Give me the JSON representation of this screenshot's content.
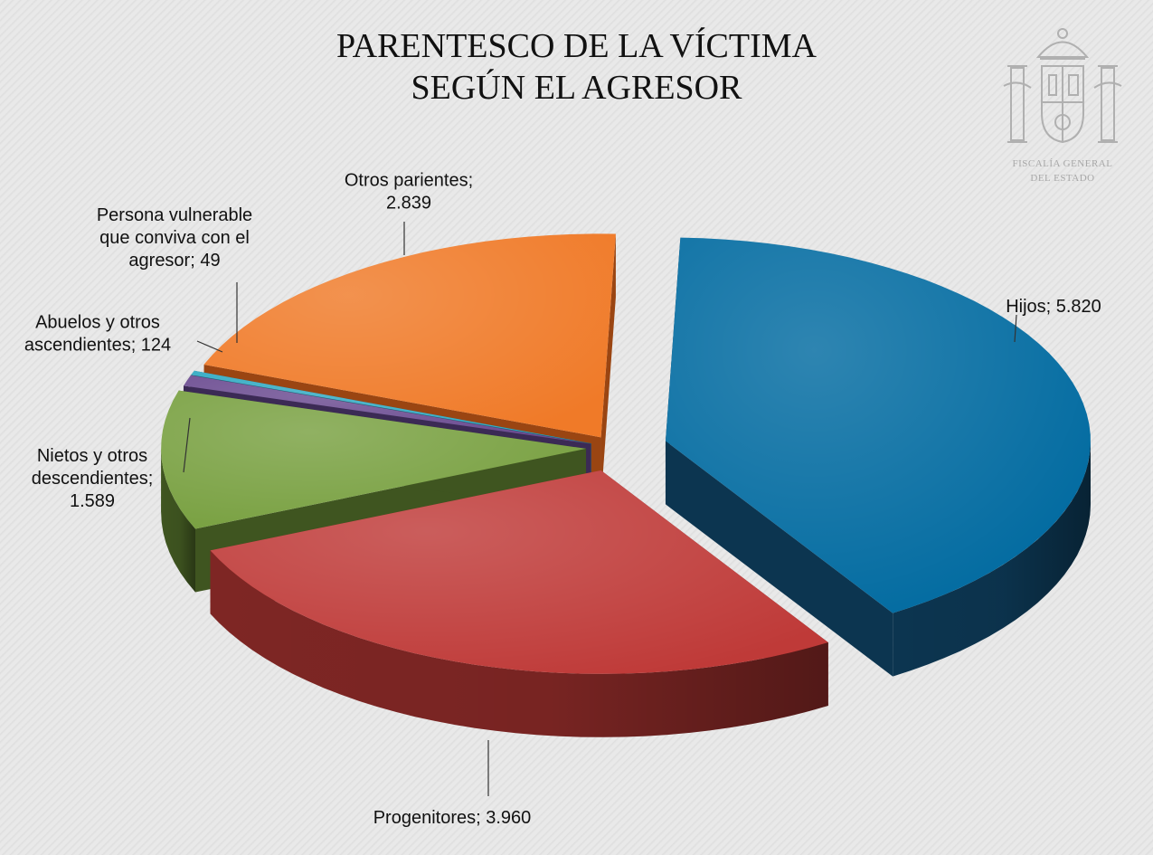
{
  "title": {
    "line1": "PARENTESCO DE LA VÍCTIMA",
    "line2": "SEGÚN EL AGRESOR"
  },
  "logo": {
    "line1": "FISCALÍA GENERAL",
    "line2": "DEL ESTADO"
  },
  "chart_data": {
    "type": "pie",
    "title": "PARENTESCO DE LA VÍCTIMA SEGÚN EL AGRESOR",
    "style": "3d-exploded",
    "slices": [
      {
        "name": "Hijos",
        "value": 5820,
        "label": [
          "Hijos; 5.820"
        ],
        "color": "#006aa0",
        "side": "#0c3550"
      },
      {
        "name": "Progenitores",
        "value": 3960,
        "label": [
          "Progenitores; 3.960"
        ],
        "color": "#bf3a38",
        "side": "#7e2624"
      },
      {
        "name": "Nietos y otros descendientes",
        "value": 1589,
        "label": [
          "Nietos y otros",
          "descendientes;",
          "1.589"
        ],
        "color": "#78a040",
        "side": "#3f5520"
      },
      {
        "name": "Abuelos y otros ascendientes",
        "value": 124,
        "label": [
          "Abuelos y otros",
          "ascendientes; 124"
        ],
        "color": "#6a4a90",
        "side": "#3b2a55"
      },
      {
        "name": "Persona vulnerable que conviva con el agresor",
        "value": 49,
        "label": [
          "Persona vulnerable",
          "que conviva con el",
          "agresor; 49"
        ],
        "color": "#2ea9c2",
        "side": "#1b6575"
      },
      {
        "name": "Otros parientes",
        "value": 2839,
        "label": [
          "Otros parientes;",
          "2.839"
        ],
        "color": "#f07a28",
        "side": "#9a4512"
      }
    ]
  }
}
